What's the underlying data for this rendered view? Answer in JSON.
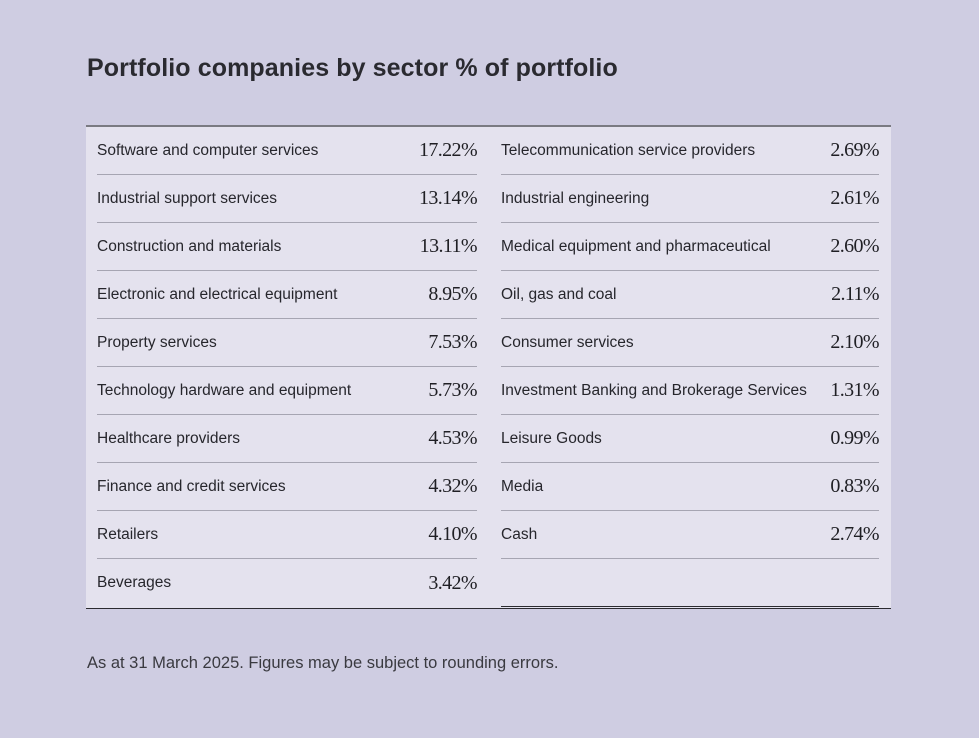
{
  "title": "Portfolio companies by sector % of portfolio",
  "footnote": "As at 31 March 2025. Figures may be subject to rounding errors.",
  "chart_data": {
    "type": "table",
    "title": "Portfolio companies by sector % of portfolio",
    "columns": [
      [
        {
          "label": "Software and computer services",
          "value": "17.22%"
        },
        {
          "label": "Industrial support services",
          "value": "13.14%"
        },
        {
          "label": "Construction and materials",
          "value": "13.11%"
        },
        {
          "label": "Electronic and electrical equipment",
          "value": "8.95%"
        },
        {
          "label": "Property services",
          "value": "7.53%"
        },
        {
          "label": "Technology hardware and equipment",
          "value": "5.73%"
        },
        {
          "label": "Healthcare providers",
          "value": "4.53%"
        },
        {
          "label": "Finance and credit services",
          "value": "4.32%"
        },
        {
          "label": "Retailers",
          "value": "4.10%"
        },
        {
          "label": "Beverages",
          "value": "3.42%"
        }
      ],
      [
        {
          "label": "Telecommunication service providers",
          "value": "2.69%"
        },
        {
          "label": "Industrial engineering",
          "value": "2.61%"
        },
        {
          "label": "Medical equipment and pharmaceutical",
          "value": "2.60%"
        },
        {
          "label": "Oil, gas and coal",
          "value": "2.11%"
        },
        {
          "label": "Consumer services",
          "value": "2.10%"
        },
        {
          "label": "Investment Banking and Brokerage Services",
          "value": "1.31%"
        },
        {
          "label": "Leisure Goods",
          "value": "0.99%"
        },
        {
          "label": "Media",
          "value": "0.83%"
        },
        {
          "label": "Cash",
          "value": "2.74%"
        }
      ]
    ]
  }
}
